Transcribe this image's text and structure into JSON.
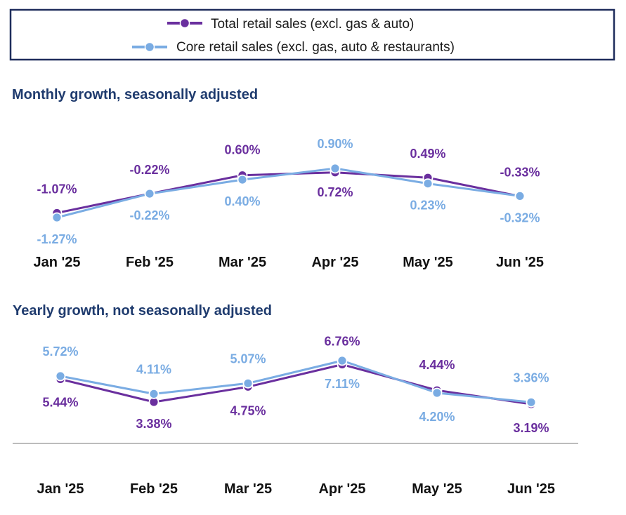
{
  "colors": {
    "total": "#6a2f9e",
    "core": "#7aace3",
    "title": "#1f3b6e",
    "axis": "#a6a6a6",
    "legend_border": "#1f2d5c"
  },
  "chart_data": [
    {
      "type": "line",
      "title": "Monthly growth, seasonally adjusted",
      "categories": [
        "Jan '25",
        "Feb '25",
        "Mar '25",
        "Apr '25",
        "May '25",
        "Jun '25"
      ],
      "series": [
        {
          "name": "Total retail sales (excl. gas & auto)",
          "values": [
            -1.07,
            -0.22,
            0.6,
            0.72,
            0.49,
            -0.33
          ],
          "labels": [
            "-1.07%",
            "-0.22%",
            "0.60%",
            "0.72%",
            "0.49%",
            "-0.33%"
          ]
        },
        {
          "name": "Core retail sales (excl. gas, auto & restaurants)",
          "values": [
            -1.27,
            -0.22,
            0.4,
            0.9,
            0.23,
            -0.32
          ],
          "labels": [
            "-1.27%",
            "-0.22%",
            "0.40%",
            "0.90%",
            "0.23%",
            "-0.32%"
          ]
        }
      ],
      "ylim": [
        -1.6,
        1.2
      ],
      "legend": "top"
    },
    {
      "type": "line",
      "title": "Yearly growth, not seasonally adjusted",
      "categories": [
        "Jan '25",
        "Feb '25",
        "Mar '25",
        "Apr '25",
        "May '25",
        "Jun '25"
      ],
      "series": [
        {
          "name": "Total retail sales (excl. gas & auto)",
          "values": [
            5.44,
            3.38,
            4.75,
            6.76,
            4.44,
            3.19
          ],
          "labels": [
            "5.44%",
            "3.38%",
            "4.75%",
            "6.76%",
            "4.44%",
            "3.19%"
          ]
        },
        {
          "name": "Core retail sales (excl. gas, auto & restaurants)",
          "values": [
            5.72,
            4.11,
            5.07,
            7.11,
            4.2,
            3.36
          ],
          "labels": [
            "5.72%",
            "4.11%",
            "5.07%",
            "7.11%",
            "4.20%",
            "3.36%"
          ]
        }
      ],
      "ylim": [
        0,
        8
      ],
      "legend": "top"
    }
  ]
}
